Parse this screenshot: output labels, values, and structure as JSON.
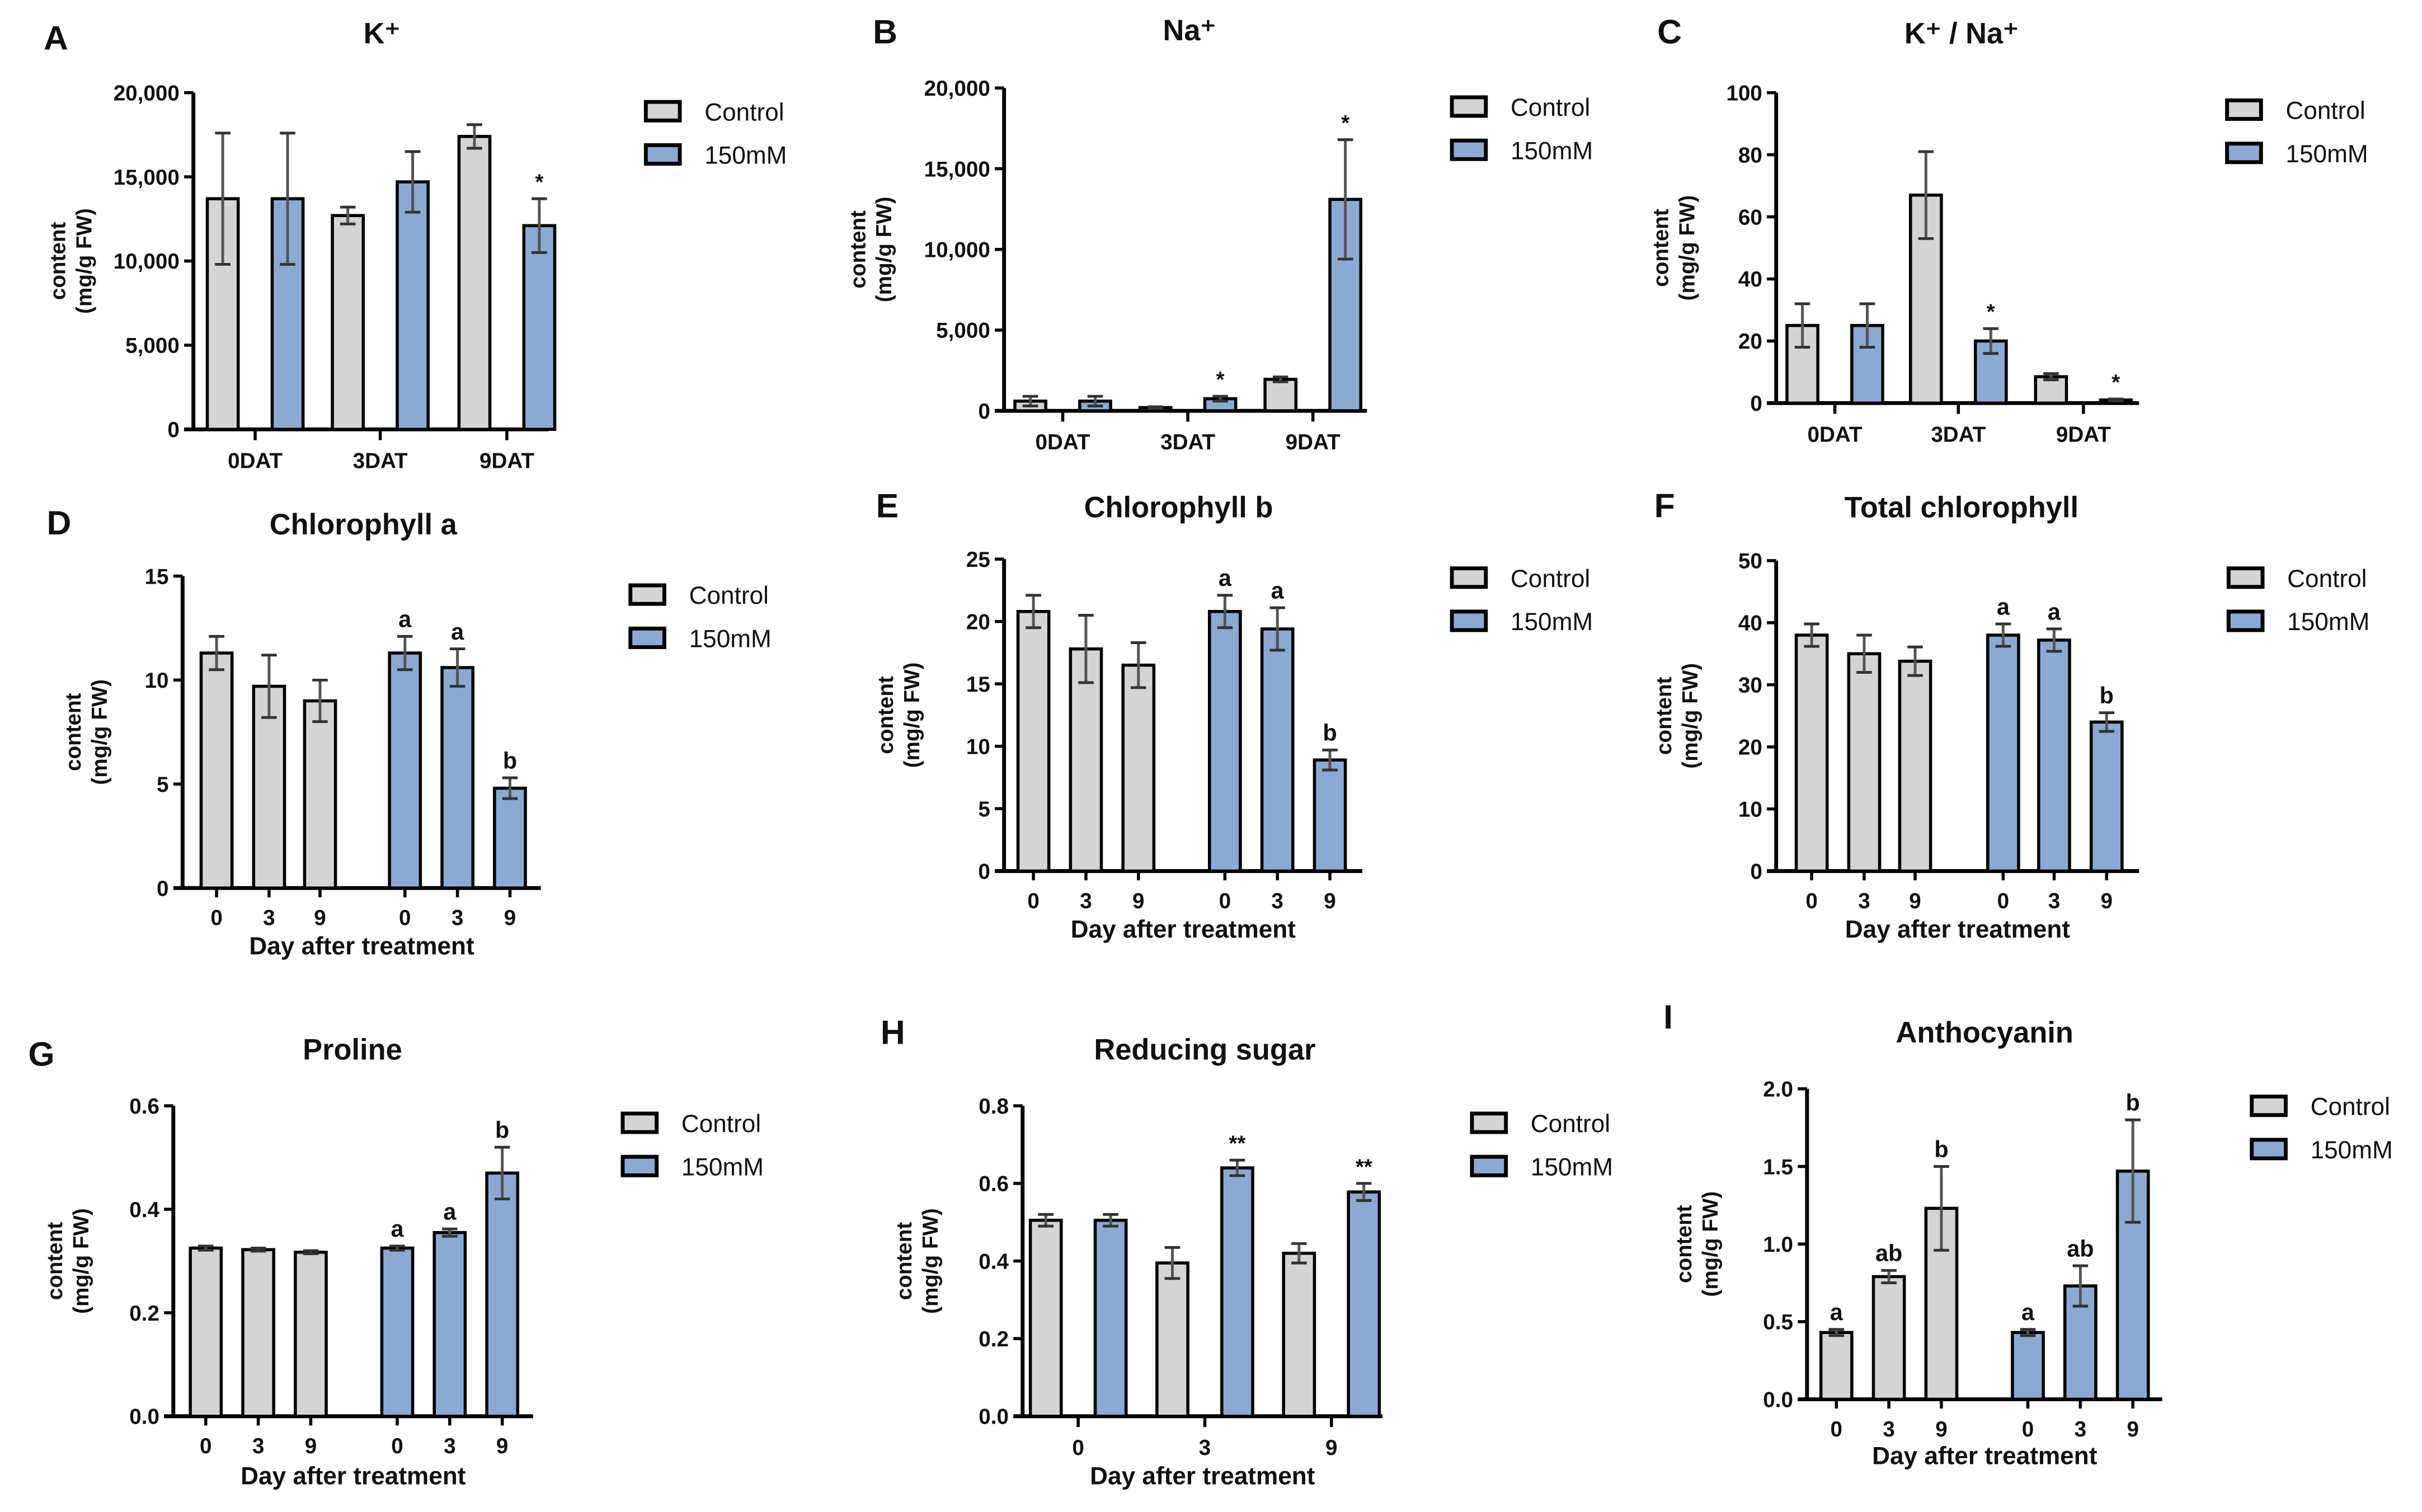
{
  "colors": {
    "control": "#d4d4d4",
    "treatment": "#8aaad3",
    "stroke": "#000000",
    "error": "#555555"
  },
  "legend": [
    "Control",
    "150mM"
  ],
  "ylabel": [
    "content",
    "(mg/g FW)"
  ],
  "chart_data": [
    {
      "panel": "A",
      "type": "bar",
      "title": "K⁺",
      "layout": "by-day",
      "categories": [
        "0DAT",
        "3DAT",
        "9DAT"
      ],
      "ylim": [
        0,
        20000
      ],
      "yticks": [
        0,
        5000,
        10000,
        15000,
        20000
      ],
      "ytick_labels": [
        "0",
        "5,000",
        "10,000",
        "15,000",
        "20,000"
      ],
      "xlabel": "",
      "series": [
        {
          "name": "Control",
          "values": [
            13700,
            12700,
            17400
          ],
          "errors": [
            3900,
            500,
            700
          ],
          "marks": [
            "",
            "",
            ""
          ]
        },
        {
          "name": "150mM",
          "values": [
            13700,
            14700,
            12100
          ],
          "errors": [
            3900,
            1800,
            1600
          ],
          "marks": [
            "",
            "",
            "*"
          ]
        }
      ]
    },
    {
      "panel": "B",
      "type": "bar",
      "title": "Na⁺",
      "layout": "by-day",
      "categories": [
        "0DAT",
        "3DAT",
        "9DAT"
      ],
      "ylim": [
        0,
        20000
      ],
      "yticks": [
        0,
        5000,
        10000,
        15000,
        20000
      ],
      "ytick_labels": [
        "0",
        "5,000",
        "10,000",
        "15,000",
        "20,000"
      ],
      "xlabel": "",
      "series": [
        {
          "name": "Control",
          "values": [
            600,
            200,
            1950
          ],
          "errors": [
            300,
            50,
            150
          ],
          "marks": [
            "",
            "",
            ""
          ]
        },
        {
          "name": "150mM",
          "values": [
            600,
            750,
            13100
          ],
          "errors": [
            300,
            150,
            3700
          ],
          "marks": [
            "",
            "*",
            "*"
          ]
        }
      ]
    },
    {
      "panel": "C",
      "type": "bar",
      "title": "K⁺ / Na⁺",
      "layout": "by-day",
      "categories": [
        "0DAT",
        "3DAT",
        "9DAT"
      ],
      "ylim": [
        0,
        100
      ],
      "yticks": [
        0,
        20,
        40,
        60,
        80,
        100
      ],
      "ytick_labels": [
        "0",
        "20",
        "40",
        "60",
        "80",
        "100"
      ],
      "xlabel": "",
      "series": [
        {
          "name": "Control",
          "values": [
            25,
            67,
            8.5
          ],
          "errors": [
            7,
            14,
            1
          ],
          "marks": [
            "",
            "",
            ""
          ]
        },
        {
          "name": "150mM",
          "values": [
            25,
            20,
            1
          ],
          "errors": [
            7,
            4,
            0.3
          ],
          "marks": [
            "",
            "*",
            "*"
          ]
        }
      ]
    },
    {
      "panel": "D",
      "type": "bar",
      "title": "Chlorophyll a",
      "layout": "by-treatment",
      "categories": [
        "0",
        "3",
        "9"
      ],
      "ylim": [
        0,
        15
      ],
      "yticks": [
        0,
        5,
        10,
        15
      ],
      "ytick_labels": [
        "0",
        "5",
        "10",
        "15"
      ],
      "xlabel": "Day after treatment",
      "series": [
        {
          "name": "Control",
          "values": [
            11.3,
            9.7,
            9.0
          ],
          "errors": [
            0.8,
            1.5,
            1.0
          ],
          "marks": [
            "",
            "",
            ""
          ]
        },
        {
          "name": "150mM",
          "values": [
            11.3,
            10.6,
            4.8
          ],
          "errors": [
            0.8,
            0.9,
            0.5
          ],
          "marks": [
            "a",
            "a",
            "b"
          ]
        }
      ]
    },
    {
      "panel": "E",
      "type": "bar",
      "title": "Chlorophyll b",
      "layout": "by-treatment",
      "categories": [
        "0",
        "3",
        "9"
      ],
      "ylim": [
        0,
        25
      ],
      "yticks": [
        0,
        5,
        10,
        15,
        20,
        25
      ],
      "ytick_labels": [
        "0",
        "5",
        "10",
        "15",
        "20",
        "25"
      ],
      "xlabel": "Day after treatment",
      "series": [
        {
          "name": "Control",
          "values": [
            20.8,
            17.8,
            16.5
          ],
          "errors": [
            1.3,
            2.7,
            1.8
          ],
          "marks": [
            "",
            "",
            ""
          ]
        },
        {
          "name": "150mM",
          "values": [
            20.8,
            19.4,
            8.9
          ],
          "errors": [
            1.3,
            1.7,
            0.8
          ],
          "marks": [
            "a",
            "a",
            "b"
          ]
        }
      ]
    },
    {
      "panel": "F",
      "type": "bar",
      "title": "Total chlorophyll",
      "layout": "by-treatment",
      "categories": [
        "0",
        "3",
        "9"
      ],
      "ylim": [
        0,
        50
      ],
      "yticks": [
        0,
        10,
        20,
        30,
        40,
        50
      ],
      "ytick_labels": [
        "0",
        "10",
        "20",
        "30",
        "40",
        "50"
      ],
      "xlabel": "Day after treatment",
      "series": [
        {
          "name": "Control",
          "values": [
            38,
            35,
            33.8
          ],
          "errors": [
            1.8,
            3,
            2.3
          ],
          "marks": [
            "",
            "",
            ""
          ]
        },
        {
          "name": "150mM",
          "values": [
            38,
            37.2,
            24
          ],
          "errors": [
            1.8,
            1.8,
            1.5
          ],
          "marks": [
            "a",
            "a",
            "b"
          ]
        }
      ]
    },
    {
      "panel": "G",
      "type": "bar",
      "title": "Proline",
      "layout": "by-treatment",
      "categories": [
        "0",
        "3",
        "9"
      ],
      "ylim": [
        0,
        0.6
      ],
      "yticks": [
        0,
        0.2,
        0.4,
        0.6
      ],
      "ytick_labels": [
        "0.0",
        "0.2",
        "0.4",
        "0.6"
      ],
      "xlabel": "Day after treatment",
      "series": [
        {
          "name": "Control",
          "values": [
            0.325,
            0.322,
            0.317
          ],
          "errors": [
            0.004,
            0.003,
            0.003
          ],
          "marks": [
            "",
            "",
            ""
          ]
        },
        {
          "name": "150mM",
          "values": [
            0.325,
            0.355,
            0.47
          ],
          "errors": [
            0.004,
            0.007,
            0.05
          ],
          "marks": [
            "a",
            "a",
            "b"
          ]
        }
      ]
    },
    {
      "panel": "H",
      "type": "bar",
      "title": "Reducing sugar",
      "layout": "by-day",
      "categories": [
        "0",
        "3",
        "9"
      ],
      "ylim": [
        0,
        0.8
      ],
      "yticks": [
        0,
        0.2,
        0.4,
        0.6,
        0.8
      ],
      "ytick_labels": [
        "0.0",
        "0.2",
        "0.4",
        "0.6",
        "0.8"
      ],
      "xlabel": "Day after treatment",
      "series": [
        {
          "name": "Control",
          "values": [
            0.505,
            0.395,
            0.42
          ],
          "errors": [
            0.015,
            0.04,
            0.025
          ],
          "marks": [
            "",
            "",
            ""
          ]
        },
        {
          "name": "150mM",
          "values": [
            0.505,
            0.64,
            0.578
          ],
          "errors": [
            0.015,
            0.02,
            0.022
          ],
          "marks": [
            "",
            "**",
            "**"
          ]
        }
      ]
    },
    {
      "panel": "I",
      "type": "bar",
      "title": "Anthocyanin",
      "layout": "by-treatment",
      "categories": [
        "0",
        "3",
        "9"
      ],
      "ylim": [
        0,
        2.0
      ],
      "yticks": [
        0,
        0.5,
        1.0,
        1.5,
        2.0
      ],
      "ytick_labels": [
        "0.0",
        "0.5",
        "1.0",
        "1.5",
        "2.0"
      ],
      "xlabel": "Day after treatment",
      "series": [
        {
          "name": "Control",
          "values": [
            0.43,
            0.79,
            1.23
          ],
          "errors": [
            0.02,
            0.04,
            0.27
          ],
          "marks": [
            "a",
            "ab",
            "b"
          ]
        },
        {
          "name": "150mM",
          "values": [
            0.43,
            0.73,
            1.47
          ],
          "errors": [
            0.02,
            0.13,
            0.33
          ],
          "marks": [
            "a",
            "ab",
            "b"
          ]
        }
      ]
    }
  ]
}
